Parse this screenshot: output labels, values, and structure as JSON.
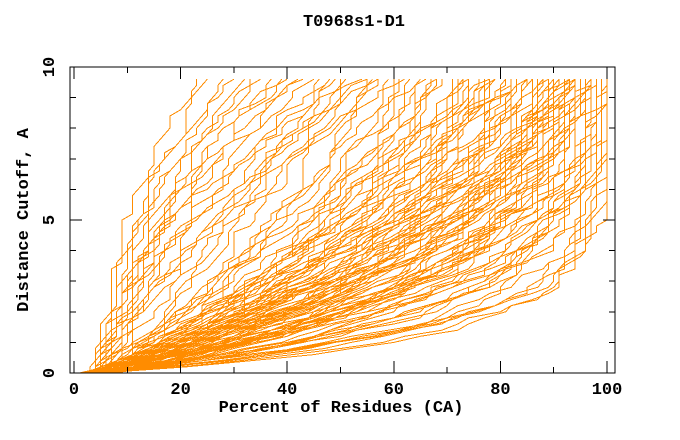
{
  "figure": {
    "background_color": "#ffffff",
    "axis_color": "#000000",
    "curve_color": "#ff8c00"
  },
  "chart_data": {
    "type": "line",
    "title": "T0968s1-D1",
    "xlabel": "Percent of Residues (CA)",
    "ylabel": "Distance Cutoff, A",
    "xlim": [
      0,
      100
    ],
    "ylim": [
      0,
      10
    ],
    "x_ticks_major": [
      0,
      20,
      40,
      60,
      80,
      100
    ],
    "x_minor_step": 10,
    "y_ticks_major": [
      0,
      5,
      10
    ],
    "y_minor_step": 1,
    "grid": false,
    "legend": null,
    "curve_color": "#ff8c00",
    "num_curves": 125,
    "cutoff_max_plotted": 9.6,
    "cutoff_step": 0.2,
    "series_model": "percent(d) = start + (end-start)*(1-exp(-d/tau))/(1-exp(-9.6/tau)); negative tau = convex (poor models); 1% quantization; monotone jitter",
    "curves_end_tau": [
      [
        24,
        -5.5
      ],
      [
        26,
        -6.5
      ],
      [
        28,
        -5
      ],
      [
        30,
        -7
      ],
      [
        32,
        -6
      ],
      [
        34,
        -8
      ],
      [
        36,
        -5.8
      ],
      [
        38,
        -7.5
      ],
      [
        39,
        -9
      ],
      [
        40,
        -6.2
      ],
      [
        42,
        -7
      ],
      [
        43,
        -10
      ],
      [
        45,
        -6.5
      ],
      [
        46,
        14
      ],
      [
        48,
        -9
      ],
      [
        49,
        12
      ],
      [
        50,
        -11
      ],
      [
        51,
        10
      ],
      [
        52,
        -8
      ],
      [
        53,
        -12
      ],
      [
        54,
        9
      ],
      [
        55,
        -10
      ],
      [
        56,
        11
      ],
      [
        57,
        8.5
      ],
      [
        58,
        -9.5
      ],
      [
        59,
        13
      ],
      [
        60,
        8
      ],
      [
        60,
        -13
      ],
      [
        62,
        7.8
      ],
      [
        63,
        5.9
      ],
      [
        64,
        6.9
      ],
      [
        65,
        7.9
      ],
      [
        65,
        5.2
      ],
      [
        66,
        6.3
      ],
      [
        67,
        7.3
      ],
      [
        68,
        5.5
      ],
      [
        69,
        6.6
      ],
      [
        70,
        7.6
      ],
      [
        70,
        4.9
      ],
      [
        71,
        5.8
      ],
      [
        72,
        6.8
      ],
      [
        73,
        7.7
      ],
      [
        73,
        5.1
      ],
      [
        74,
        6.1
      ],
      [
        75,
        7.1
      ],
      [
        75,
        4.7
      ],
      [
        76,
        5.6
      ],
      [
        77,
        6.7
      ],
      [
        78,
        7.4
      ],
      [
        78,
        5.0
      ],
      [
        79,
        6.0
      ],
      [
        80,
        7.0
      ],
      [
        80,
        4.6
      ],
      [
        80,
        5.9
      ],
      [
        79,
        6.9
      ],
      [
        77,
        5.3
      ],
      [
        81,
        5.7
      ],
      [
        82,
        4.4
      ],
      [
        82,
        5.4
      ],
      [
        83,
        3.8
      ],
      [
        84,
        4.9
      ],
      [
        84,
        5.9
      ],
      [
        85,
        3.4
      ],
      [
        85,
        4.6
      ],
      [
        86,
        5.5
      ],
      [
        86,
        3.0
      ],
      [
        87,
        4.2
      ],
      [
        87,
        5.2
      ],
      [
        88,
        2.9
      ],
      [
        88,
        4.0
      ],
      [
        89,
        5.0
      ],
      [
        89,
        3.3
      ],
      [
        90,
        4.5
      ],
      [
        90,
        2.7
      ],
      [
        91,
        3.9
      ],
      [
        91,
        5.1
      ],
      [
        92,
        2.6
      ],
      [
        92,
        3.6
      ],
      [
        93,
        4.7
      ],
      [
        93,
        2.8
      ],
      [
        94,
        3.5
      ],
      [
        94,
        4.4
      ],
      [
        95,
        2.5
      ],
      [
        95,
        3.2
      ],
      [
        95,
        4.1
      ],
      [
        94,
        5.3
      ],
      [
        93,
        5.8
      ],
      [
        92,
        4.9
      ],
      [
        91,
        2.9
      ],
      [
        90,
        5.6
      ],
      [
        96,
        2.2
      ],
      [
        96,
        3.1
      ],
      [
        97,
        1.8
      ],
      [
        97,
        2.6
      ],
      [
        98,
        1.5
      ],
      [
        98,
        2.9
      ],
      [
        98,
        3.4
      ],
      [
        99,
        1.4
      ],
      [
        99,
        2.1
      ],
      [
        99,
        3.0
      ],
      [
        100,
        1.2
      ],
      [
        100,
        1.7
      ],
      [
        100,
        2.4
      ],
      [
        100,
        3.3
      ],
      [
        100,
        1.5
      ],
      [
        99,
        1.9
      ],
      [
        98,
        2.0
      ],
      [
        97,
        3.2
      ],
      [
        96,
        2.7
      ],
      [
        100,
        2.0
      ],
      [
        83,
        4.7
      ],
      [
        86,
        2.4
      ],
      [
        88,
        5.6
      ],
      [
        89,
        2.6
      ],
      [
        91,
        4.3
      ],
      [
        93,
        3.1
      ],
      [
        95,
        5.0
      ],
      [
        96,
        1.6
      ],
      [
        97,
        2.3
      ],
      [
        98,
        1.3
      ],
      [
        85,
        5.8
      ],
      [
        87,
        3.6
      ],
      [
        90,
        3.7
      ],
      [
        92,
        5.5
      ],
      [
        94,
        2.9
      ]
    ],
    "jitter": {
      "seed": 42,
      "stride": 101,
      "amplitude": 2.0,
      "start_range": [
        2.5,
        6.5
      ]
    }
  }
}
